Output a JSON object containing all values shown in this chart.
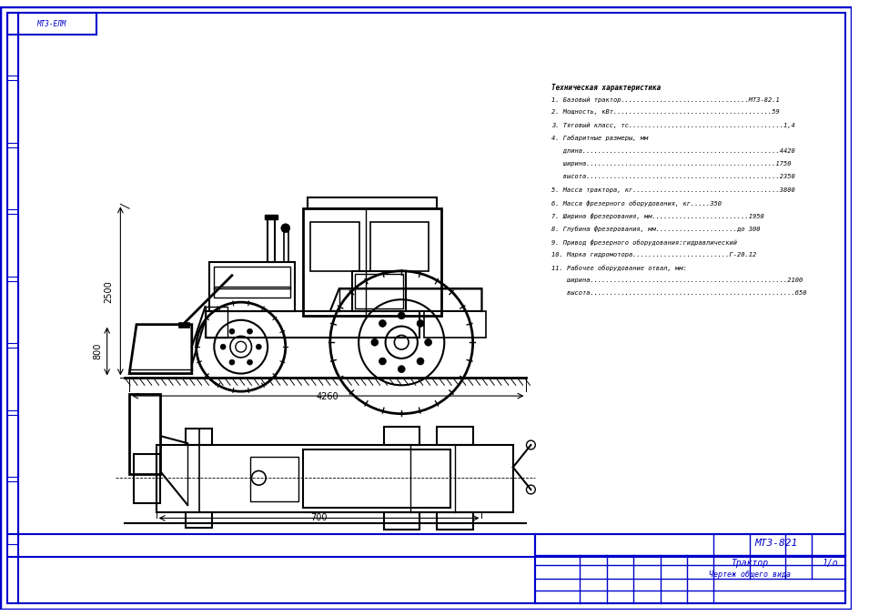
{
  "title": "МТЗ-821",
  "drawing_title": "Трактор",
  "drawing_subtitle": "Чертеж общего вида",
  "sheet": "1/о",
  "border_color": "#0000cc",
  "line_color": "#000000",
  "bg_color": "#ffffff",
  "tech_specs": [
    "Техническая характеристика",
    "1. Базовый трактор.................................МТЗ-82.1",
    "2. Мощность, кВт.........................................59",
    "3. Тяговый класс, тс........................................1,4",
    "4. Габаритные размеры, мм",
    "   длина...................................................4420",
    "   ширина.................................................1750",
    "   высота..................................................2350",
    "5. Масса трактора, кг......................................3800",
    "6. Масса фрезерного оборудования, кг.....350",
    "7. Ширина фрезерования, мм.........................1950",
    "8. Глубина фрезерования, мм.....................до 300",
    "9. Привод фрезерного оборудования:гидравлический",
    "10. Марка гидромотора.........................Г-20.12",
    "11. Рабочее оборудование отвал, мм:",
    "    ширина...................................................2100",
    "    высота.....................................................650"
  ],
  "dim_4260": "4260",
  "dim_2500": "2500",
  "dim_800": "800",
  "dim_700": "700"
}
